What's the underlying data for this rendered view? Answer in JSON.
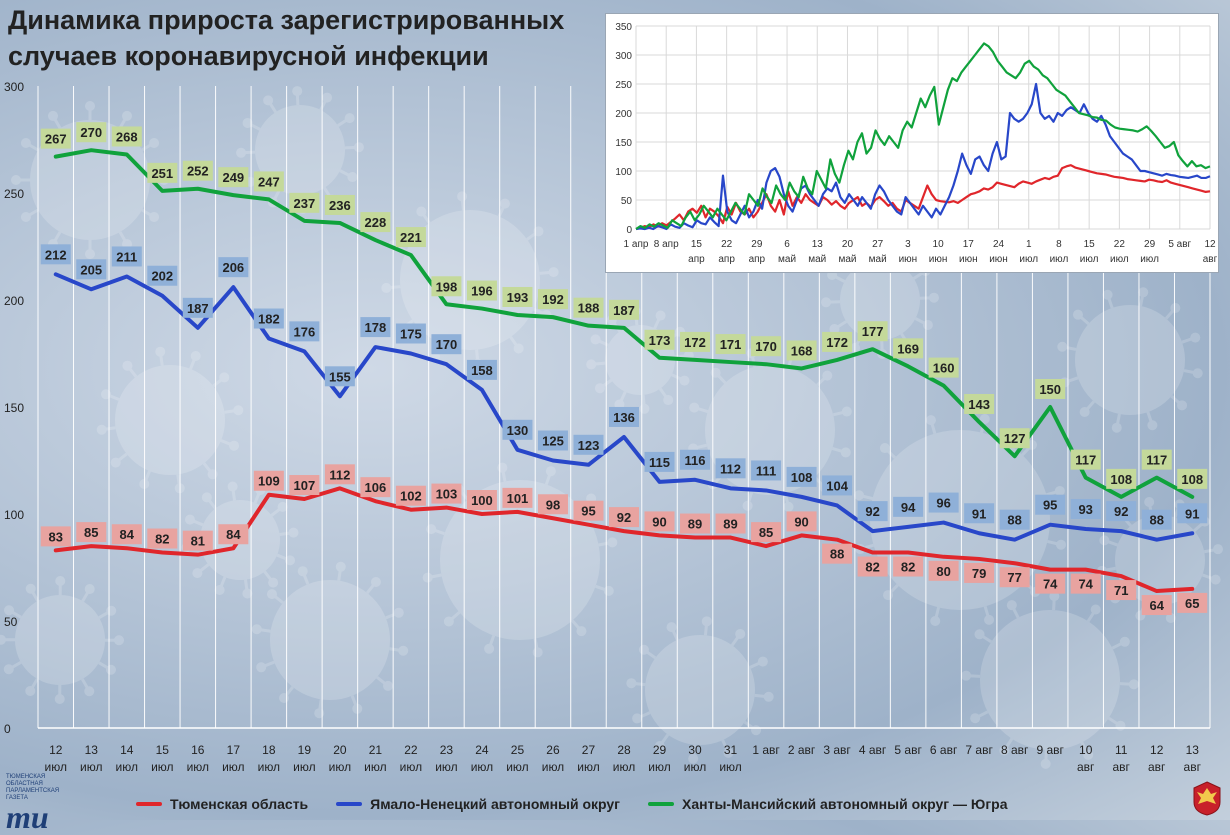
{
  "title": "Динамика прироста зарегистрированных случаев коронавирусной инфекции",
  "logo": {
    "small": "ТЮМЕНСКАЯ ОБЛАСТНАЯ ПАРЛАМЕНТСКАЯ ГАЗЕТА",
    "big": "ти"
  },
  "colors": {
    "red": "#e0262b",
    "blue": "#2847c9",
    "green": "#10a23c"
  },
  "chart_data": [
    {
      "type": "line",
      "ylim": [
        0,
        300
      ],
      "yticks": [
        0,
        50,
        100,
        150,
        200,
        250,
        300
      ],
      "grid": true,
      "legend": "bottom",
      "categories": [
        [
          "12",
          "июл"
        ],
        [
          "13",
          "июл"
        ],
        [
          "14",
          "июл"
        ],
        [
          "15",
          "июл"
        ],
        [
          "16",
          "июл"
        ],
        [
          "17",
          "июл"
        ],
        [
          "18",
          "июл"
        ],
        [
          "19",
          "июл"
        ],
        [
          "20",
          "июл"
        ],
        [
          "21",
          "июл"
        ],
        [
          "22",
          "июл"
        ],
        [
          "23",
          "июл"
        ],
        [
          "24",
          "июл"
        ],
        [
          "25",
          "июл"
        ],
        [
          "26",
          "июл"
        ],
        [
          "27",
          "июл"
        ],
        [
          "28",
          "июл"
        ],
        [
          "29",
          "июл"
        ],
        [
          "30",
          "июл"
        ],
        [
          "31",
          "июл"
        ],
        [
          "1 авг",
          ""
        ],
        [
          "2 авг",
          ""
        ],
        [
          "3 авг",
          ""
        ],
        [
          "4 авг",
          ""
        ],
        [
          "5 авг",
          ""
        ],
        [
          "6 авг",
          ""
        ],
        [
          "7 авг",
          ""
        ],
        [
          "8 авг",
          ""
        ],
        [
          "9 авг",
          ""
        ],
        [
          "10",
          "авг"
        ],
        [
          "11",
          "авг"
        ],
        [
          "12",
          "авг"
        ],
        [
          "13",
          "авг"
        ]
      ],
      "series": [
        {
          "name": "Тюменская область",
          "color": "#e0262b",
          "label_bg": "#e8a3a0",
          "values": [
            83,
            85,
            84,
            82,
            81,
            84,
            109,
            107,
            112,
            106,
            102,
            103,
            100,
            101,
            98,
            95,
            92,
            90,
            89,
            89,
            85,
            90,
            88,
            82,
            82,
            80,
            79,
            77,
            74,
            74,
            71,
            64,
            65
          ],
          "label_dy": [
            -14,
            -14,
            -14,
            -14,
            -14,
            -14,
            -14,
            -14,
            -14,
            -14,
            -14,
            -14,
            -14,
            -14,
            -14,
            -14,
            -14,
            -14,
            -14,
            -14,
            -14,
            -14,
            14,
            14,
            14,
            14,
            14,
            14,
            14,
            14,
            14,
            14,
            14
          ]
        },
        {
          "name": "Ямало-Ненецкий автономный округ",
          "color": "#2847c9",
          "label_bg": "#8fb0d8",
          "values": [
            212,
            205,
            211,
            202,
            187,
            206,
            182,
            176,
            155,
            178,
            175,
            170,
            158,
            130,
            125,
            123,
            136,
            115,
            116,
            112,
            111,
            108,
            104,
            92,
            94,
            96,
            91,
            88,
            95,
            93,
            92,
            88,
            91
          ],
          "label_dy": [
            -20,
            -20,
            -20,
            -20,
            -20,
            -20,
            -20,
            -20,
            -20,
            -20,
            -20,
            -20,
            -20,
            -20,
            -20,
            -20,
            -20,
            -20,
            -20,
            -20,
            -20,
            -20,
            -20,
            -20,
            -20,
            -20,
            -20,
            -20,
            -20,
            -20,
            -20,
            -20,
            -20
          ]
        },
        {
          "name": "Ханты-Мансийский автономный округ — Югра",
          "color": "#10a23c",
          "label_bg": "#c4d99a",
          "values": [
            267,
            270,
            268,
            251,
            252,
            249,
            247,
            237,
            236,
            228,
            221,
            198,
            196,
            193,
            192,
            188,
            187,
            173,
            172,
            171,
            170,
            168,
            172,
            177,
            169,
            160,
            143,
            127,
            150,
            117,
            108,
            117,
            108
          ],
          "label_dy": [
            -18,
            -18,
            -18,
            -18,
            -18,
            -18,
            -18,
            -18,
            -18,
            -18,
            -18,
            -18,
            -18,
            -18,
            -18,
            -18,
            -18,
            -18,
            -18,
            -18,
            -18,
            -18,
            -18,
            -18,
            -18,
            -18,
            -18,
            -18,
            -18,
            -18,
            -18,
            -18,
            -18
          ]
        }
      ]
    },
    {
      "type": "line",
      "ylim": [
        0,
        350
      ],
      "yticks": [
        0,
        50,
        100,
        150,
        200,
        250,
        300,
        350
      ],
      "grid": true,
      "xtick_labels": [
        [
          "1 апр",
          ""
        ],
        [
          "8 апр",
          ""
        ],
        [
          "15",
          "апр"
        ],
        [
          "22",
          "апр"
        ],
        [
          "29",
          "апр"
        ],
        [
          "6",
          "май"
        ],
        [
          "13",
          "май"
        ],
        [
          "20",
          "май"
        ],
        [
          "27",
          "май"
        ],
        [
          "3",
          "июн"
        ],
        [
          "10",
          "июн"
        ],
        [
          "17",
          "июн"
        ],
        [
          "24",
          "июн"
        ],
        [
          "1",
          "июл"
        ],
        [
          "8",
          "июл"
        ],
        [
          "15",
          "июл"
        ],
        [
          "22",
          "июл"
        ],
        [
          "29",
          "июл"
        ],
        [
          "5 авг",
          ""
        ],
        [
          "12",
          "авг"
        ]
      ],
      "series": [
        {
          "name": "Тюменская область",
          "color": "#e0262b",
          "values": [
            0,
            2,
            5,
            3,
            8,
            4,
            10,
            6,
            12,
            18,
            25,
            15,
            30,
            35,
            28,
            40,
            20,
            35,
            30,
            22,
            10,
            38,
            25,
            45,
            30,
            25,
            35,
            20,
            30,
            45,
            60,
            40,
            30,
            50,
            25,
            65,
            40,
            55,
            45,
            60,
            50,
            45,
            40,
            55,
            50,
            42,
            48,
            40,
            35,
            45,
            50,
            55,
            40,
            45,
            38,
            50,
            55,
            48,
            40,
            45,
            35,
            30,
            50,
            45,
            40,
            35,
            55,
            75,
            60,
            50,
            48,
            47,
            46,
            48,
            45,
            50,
            55,
            60,
            62,
            65,
            70,
            68,
            72,
            80,
            78,
            76,
            74,
            72,
            78,
            82,
            80,
            78,
            82,
            85,
            88,
            86,
            90,
            92,
            105,
            108,
            110,
            106,
            104,
            102,
            100,
            98,
            96,
            95,
            94,
            92,
            90,
            89,
            88,
            86,
            85,
            84,
            83,
            82,
            85,
            84,
            82,
            81,
            84,
            80,
            78,
            76,
            74,
            72,
            70,
            68,
            66,
            64,
            65
          ]
        },
        {
          "name": "Ямало-Ненецкий автономный округ",
          "color": "#2847c9",
          "values": [
            0,
            1,
            0,
            2,
            0,
            5,
            3,
            0,
            8,
            4,
            2,
            10,
            6,
            3,
            15,
            10,
            8,
            20,
            12,
            5,
            92,
            30,
            15,
            10,
            25,
            40,
            20,
            30,
            50,
            35,
            80,
            100,
            105,
            90,
            60,
            40,
            30,
            50,
            70,
            75,
            60,
            50,
            40,
            60,
            70,
            65,
            80,
            55,
            45,
            60,
            50,
            40,
            55,
            45,
            35,
            60,
            75,
            65,
            50,
            40,
            30,
            25,
            55,
            45,
            35,
            25,
            40,
            30,
            20,
            35,
            25,
            40,
            55,
            75,
            100,
            130,
            110,
            95,
            120,
            125,
            110,
            100,
            130,
            150,
            120,
            125,
            200,
            190,
            185,
            190,
            200,
            215,
            250,
            200,
            190,
            195,
            185,
            200,
            195,
            205,
            210,
            205,
            200,
            215,
            200,
            190,
            185,
            195,
            180,
            160,
            150,
            140,
            130,
            125,
            120,
            110,
            100,
            100,
            98,
            96,
            94,
            92,
            95,
            93,
            92,
            90,
            89,
            88,
            90,
            92,
            88,
            88,
            91
          ]
        },
        {
          "name": "Ханты-Мансийский автономный округ — Югра",
          "color": "#10a23c",
          "values": [
            0,
            5,
            2,
            8,
            4,
            10,
            6,
            2,
            15,
            10,
            5,
            20,
            30,
            15,
            25,
            40,
            30,
            20,
            35,
            25,
            15,
            30,
            45,
            35,
            25,
            60,
            50,
            40,
            70,
            55,
            45,
            75,
            60,
            50,
            80,
            65,
            55,
            90,
            70,
            60,
            100,
            85,
            70,
            120,
            95,
            80,
            110,
            135,
            120,
            150,
            165,
            130,
            140,
            170,
            155,
            145,
            160,
            150,
            140,
            170,
            185,
            175,
            200,
            225,
            210,
            230,
            245,
            180,
            210,
            240,
            260,
            255,
            270,
            280,
            290,
            300,
            310,
            320,
            315,
            305,
            290,
            280,
            270,
            265,
            260,
            270,
            285,
            290,
            280,
            275,
            265,
            260,
            250,
            240,
            235,
            230,
            220,
            210,
            200,
            198,
            196,
            193,
            192,
            188,
            187,
            180,
            175,
            173,
            172,
            171,
            170,
            168,
            172,
            177,
            169,
            160,
            150,
            140,
            143,
            150,
            127,
            117,
            108,
            117,
            108,
            110,
            105,
            108
          ]
        }
      ]
    }
  ]
}
